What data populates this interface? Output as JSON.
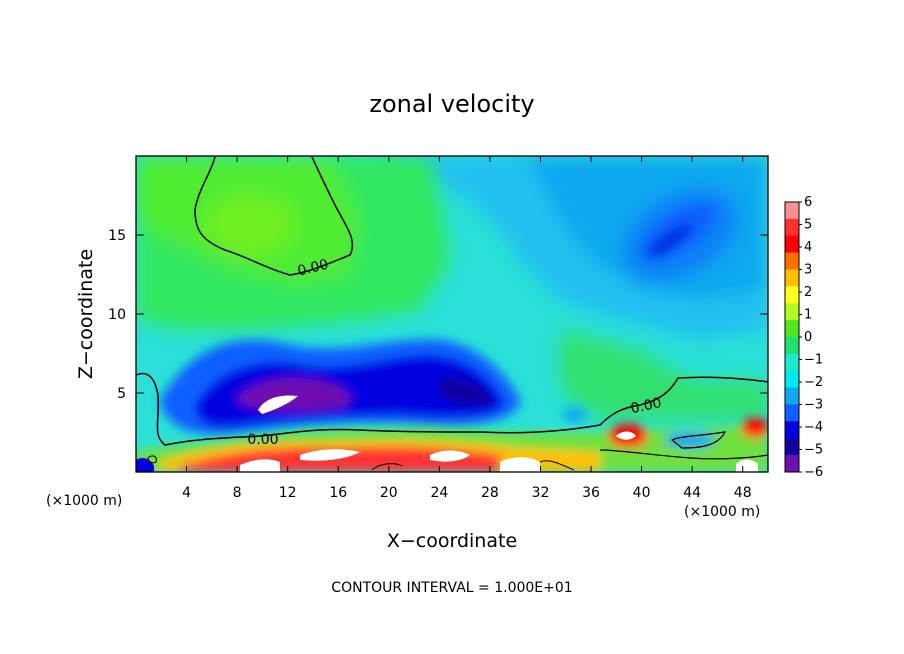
{
  "chart_data": {
    "type": "heatmap",
    "title": "zonal velocity",
    "xlabel": "X−coordinate",
    "ylabel": "Z−coordinate",
    "x_unit": "(×1000 m)",
    "z_unit": "(×1000 m)",
    "xlim": [
      0,
      50
    ],
    "ylim": [
      0,
      20
    ],
    "x_ticks": [
      "4",
      "8",
      "12",
      "16",
      "20",
      "24",
      "28",
      "32",
      "36",
      "40",
      "44",
      "48"
    ],
    "y_ticks": [
      "5",
      "10",
      "15"
    ],
    "contour_labels": [
      "0.00",
      "0.00",
      "0.00"
    ],
    "contour_note": "CONTOUR INTERVAL = 1.000E+01",
    "colorbar": {
      "labels": [
        "6",
        "5",
        "4",
        "3",
        "2",
        "1",
        "0",
        "−1",
        "−2",
        "−3",
        "−4",
        "−5",
        "−6"
      ],
      "range": [
        -6,
        6
      ],
      "colors": [
        "#ff9090",
        "#ff3030",
        "#ff0000",
        "#ff7000",
        "#ffc000",
        "#ffff20",
        "#b0ff20",
        "#50e820",
        "#20e070",
        "#20e8d0",
        "#00e8f0",
        "#10a8f0",
        "#1060ff",
        "#0000e0",
        "#1000a0",
        "#7010b0"
      ]
    }
  }
}
